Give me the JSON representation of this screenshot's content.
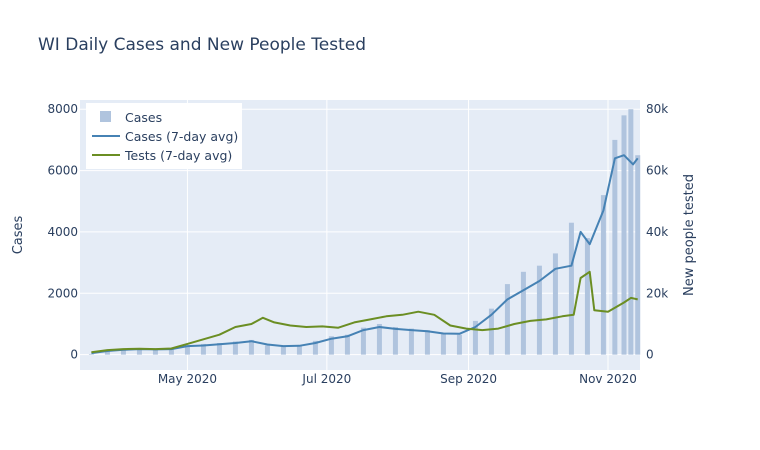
{
  "chart_data": {
    "type": "bar+line",
    "title": "WI Daily Cases and New People Tested",
    "xlabel": "",
    "ylabel": "Cases",
    "y2label": "New people tested",
    "x_range": [
      "2020-03-15",
      "2020-11-15"
    ],
    "x_ticks": [
      {
        "date": "2020-05-01",
        "label": "May 2020"
      },
      {
        "date": "2020-07-01",
        "label": "Jul 2020"
      },
      {
        "date": "2020-09-01",
        "label": "Sep 2020"
      },
      {
        "date": "2020-11-01",
        "label": "Nov 2020"
      }
    ],
    "ylim": [
      -500,
      8300
    ],
    "y_ticks": [
      0,
      2000,
      4000,
      6000,
      8000
    ],
    "y2lim": [
      -5000,
      83000
    ],
    "y2_ticks": [
      {
        "value": 0,
        "label": "0"
      },
      {
        "value": 20000,
        "label": "20k"
      },
      {
        "value": 40000,
        "label": "40k"
      },
      {
        "value": 60000,
        "label": "60k"
      },
      {
        "value": 80000,
        "label": "80k"
      }
    ],
    "grid": true,
    "legend_position": "top-left",
    "series": [
      {
        "name": "Cases",
        "type": "bar",
        "axis": "y",
        "color": "#b0c4de",
        "points": [
          [
            "2020-03-20",
            20
          ],
          [
            "2020-03-27",
            150
          ],
          [
            "2020-04-03",
            200
          ],
          [
            "2020-04-10",
            180
          ],
          [
            "2020-04-17",
            160
          ],
          [
            "2020-04-24",
            200
          ],
          [
            "2020-05-01",
            300
          ],
          [
            "2020-05-08",
            350
          ],
          [
            "2020-05-15",
            380
          ],
          [
            "2020-05-22",
            430
          ],
          [
            "2020-05-29",
            480
          ],
          [
            "2020-06-05",
            300
          ],
          [
            "2020-06-12",
            280
          ],
          [
            "2020-06-19",
            300
          ],
          [
            "2020-06-26",
            450
          ],
          [
            "2020-07-03",
            600
          ],
          [
            "2020-07-10",
            650
          ],
          [
            "2020-07-17",
            880
          ],
          [
            "2020-07-24",
            1000
          ],
          [
            "2020-07-31",
            900
          ],
          [
            "2020-08-07",
            850
          ],
          [
            "2020-08-14",
            800
          ],
          [
            "2020-08-21",
            700
          ],
          [
            "2020-08-28",
            650
          ],
          [
            "2020-09-04",
            1100
          ],
          [
            "2020-09-11",
            1500
          ],
          [
            "2020-09-18",
            2300
          ],
          [
            "2020-09-25",
            2700
          ],
          [
            "2020-10-02",
            2900
          ],
          [
            "2020-10-09",
            3300
          ],
          [
            "2020-10-16",
            4300
          ],
          [
            "2020-10-23",
            3800
          ],
          [
            "2020-10-30",
            5200
          ],
          [
            "2020-11-04",
            7000
          ],
          [
            "2020-11-08",
            7800
          ],
          [
            "2020-11-11",
            8000
          ],
          [
            "2020-11-14",
            6500
          ]
        ]
      },
      {
        "name": "Cases (7-day avg)",
        "type": "line",
        "axis": "y",
        "color": "#4682b4",
        "points": [
          [
            "2020-03-20",
            50
          ],
          [
            "2020-03-27",
            120
          ],
          [
            "2020-04-03",
            160
          ],
          [
            "2020-04-10",
            180
          ],
          [
            "2020-04-17",
            170
          ],
          [
            "2020-04-24",
            180
          ],
          [
            "2020-05-01",
            280
          ],
          [
            "2020-05-08",
            300
          ],
          [
            "2020-05-15",
            340
          ],
          [
            "2020-05-22",
            380
          ],
          [
            "2020-05-29",
            440
          ],
          [
            "2020-06-05",
            330
          ],
          [
            "2020-06-12",
            280
          ],
          [
            "2020-06-19",
            290
          ],
          [
            "2020-06-26",
            380
          ],
          [
            "2020-07-03",
            520
          ],
          [
            "2020-07-10",
            600
          ],
          [
            "2020-07-17",
            800
          ],
          [
            "2020-07-24",
            900
          ],
          [
            "2020-07-31",
            840
          ],
          [
            "2020-08-07",
            800
          ],
          [
            "2020-08-14",
            760
          ],
          [
            "2020-08-21",
            690
          ],
          [
            "2020-08-28",
            680
          ],
          [
            "2020-09-04",
            900
          ],
          [
            "2020-09-11",
            1300
          ],
          [
            "2020-09-18",
            1800
          ],
          [
            "2020-09-25",
            2100
          ],
          [
            "2020-10-02",
            2400
          ],
          [
            "2020-10-09",
            2800
          ],
          [
            "2020-10-16",
            2900
          ],
          [
            "2020-10-20",
            4000
          ],
          [
            "2020-10-24",
            3600
          ],
          [
            "2020-10-30",
            4700
          ],
          [
            "2020-11-04",
            6400
          ],
          [
            "2020-11-08",
            6500
          ],
          [
            "2020-11-12",
            6200
          ],
          [
            "2020-11-14",
            6400
          ]
        ]
      },
      {
        "name": "Tests (7-day avg)",
        "type": "line",
        "axis": "y2",
        "color": "#6b8e23",
        "points": [
          [
            "2020-03-20",
            800
          ],
          [
            "2020-03-27",
            1500
          ],
          [
            "2020-04-03",
            1800
          ],
          [
            "2020-04-10",
            1900
          ],
          [
            "2020-04-17",
            1800
          ],
          [
            "2020-04-24",
            2000
          ],
          [
            "2020-05-01",
            3500
          ],
          [
            "2020-05-08",
            5000
          ],
          [
            "2020-05-15",
            6500
          ],
          [
            "2020-05-22",
            9000
          ],
          [
            "2020-05-29",
            10000
          ],
          [
            "2020-06-03",
            12000
          ],
          [
            "2020-06-08",
            10500
          ],
          [
            "2020-06-15",
            9500
          ],
          [
            "2020-06-22",
            9000
          ],
          [
            "2020-06-29",
            9200
          ],
          [
            "2020-07-06",
            8800
          ],
          [
            "2020-07-13",
            10500
          ],
          [
            "2020-07-20",
            11500
          ],
          [
            "2020-07-27",
            12500
          ],
          [
            "2020-08-03",
            13000
          ],
          [
            "2020-08-10",
            14000
          ],
          [
            "2020-08-17",
            13000
          ],
          [
            "2020-08-24",
            9500
          ],
          [
            "2020-08-31",
            8500
          ],
          [
            "2020-09-07",
            8000
          ],
          [
            "2020-09-14",
            8500
          ],
          [
            "2020-09-21",
            10000
          ],
          [
            "2020-09-28",
            11000
          ],
          [
            "2020-10-05",
            11500
          ],
          [
            "2020-10-12",
            12500
          ],
          [
            "2020-10-17",
            13000
          ],
          [
            "2020-10-20",
            25000
          ],
          [
            "2020-10-24",
            27000
          ],
          [
            "2020-10-26",
            14500
          ],
          [
            "2020-11-01",
            14000
          ],
          [
            "2020-11-08",
            17000
          ],
          [
            "2020-11-11",
            18500
          ],
          [
            "2020-11-14",
            18000
          ]
        ]
      }
    ]
  }
}
